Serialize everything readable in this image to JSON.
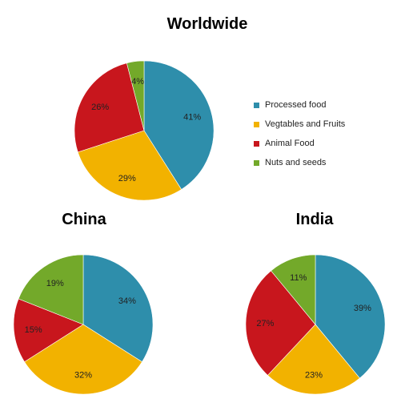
{
  "colors": {
    "processed": "#2e8eab",
    "vegfruit": "#f2b200",
    "animal": "#c8161d",
    "nuts": "#73a92a"
  },
  "legend": {
    "items": [
      {
        "label": "Processed food",
        "color": "#2e8eab"
      },
      {
        "label": "Vegtables and Fruits",
        "color": "#f2b200"
      },
      {
        "label": "Animal Food",
        "color": "#c8161d"
      },
      {
        "label": "Nuts and seeds",
        "color": "#73a92a"
      }
    ]
  },
  "chart_data": [
    {
      "type": "pie",
      "title": "Worldwide",
      "categories": [
        "Processed food",
        "Vegtables and Fruits",
        "Animal Food",
        "Nuts and seeds"
      ],
      "values": [
        41,
        29,
        26,
        4
      ],
      "data_labels": [
        "41%",
        "29%",
        "26%",
        "4%"
      ],
      "legend": "right"
    },
    {
      "type": "pie",
      "title": "China",
      "categories": [
        "Processed food",
        "Vegtables and Fruits",
        "Animal Food",
        "Nuts and seeds"
      ],
      "values": [
        34,
        32,
        15,
        19
      ],
      "data_labels": [
        "34%",
        "32%",
        "15%",
        "19%"
      ]
    },
    {
      "type": "pie",
      "title": "India",
      "categories": [
        "Processed food",
        "Vegtables and Fruits",
        "Animal Food",
        "Nuts and seeds"
      ],
      "values": [
        39,
        23,
        27,
        11
      ],
      "data_labels": [
        "39%",
        "23%",
        "27%",
        "11%"
      ]
    }
  ]
}
